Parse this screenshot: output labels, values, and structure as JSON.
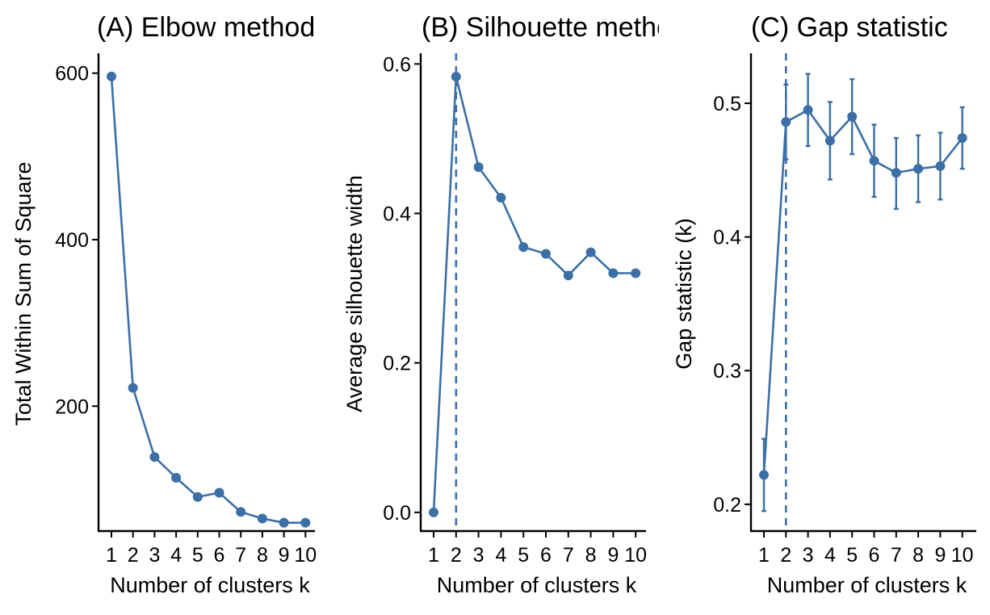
{
  "colors": {
    "series": "#3b6fa6",
    "axis": "#000000",
    "background": "#ffffff"
  },
  "chart_data": [
    {
      "type": "line",
      "title": "(A) Elbow method",
      "xlabel": "Number of clusters k",
      "ylabel": "Total Within Sum of Square",
      "x": [
        1,
        2,
        3,
        4,
        5,
        6,
        7,
        8,
        9,
        10
      ],
      "x_ticks": [
        "1",
        "2",
        "3",
        "4",
        "5",
        "6",
        "7",
        "8",
        "9",
        "10"
      ],
      "values": [
        596,
        222,
        139,
        114,
        91,
        96,
        73,
        65,
        60,
        60
      ],
      "y_ticks": [
        200,
        400,
        600
      ],
      "y_tick_labels": [
        "200",
        "400",
        "600"
      ],
      "ylim": [
        50,
        620
      ],
      "grid": false
    },
    {
      "type": "line",
      "title": "(B) Silhouette method",
      "xlabel": "Number of clusters k",
      "ylabel": "Average silhouette width",
      "x": [
        1,
        2,
        3,
        4,
        5,
        6,
        7,
        8,
        9,
        10
      ],
      "x_ticks": [
        "1",
        "2",
        "3",
        "4",
        "5",
        "6",
        "7",
        "8",
        "9",
        "10"
      ],
      "values": [
        0.0,
        0.583,
        0.462,
        0.421,
        0.355,
        0.346,
        0.317,
        0.348,
        0.32,
        0.32
      ],
      "y_ticks": [
        0.0,
        0.2,
        0.4,
        0.6
      ],
      "y_tick_labels": [
        "0.0",
        "0.2",
        "0.4",
        "0.6"
      ],
      "ylim": [
        -0.025,
        0.61
      ],
      "vline_x": 2,
      "grid": false
    },
    {
      "type": "line",
      "title": "(C) Gap statistic",
      "xlabel": "Number of clusters k",
      "ylabel": "Gap statistic (k)",
      "x": [
        1,
        2,
        3,
        4,
        5,
        6,
        7,
        8,
        9,
        10
      ],
      "x_ticks": [
        "1",
        "2",
        "3",
        "4",
        "5",
        "6",
        "7",
        "8",
        "9",
        "10"
      ],
      "values": [
        0.222,
        0.486,
        0.495,
        0.472,
        0.49,
        0.457,
        0.448,
        0.451,
        0.453,
        0.474
      ],
      "error_low": [
        0.195,
        0.458,
        0.468,
        0.443,
        0.462,
        0.43,
        0.421,
        0.426,
        0.428,
        0.451
      ],
      "error_high": [
        0.249,
        0.514,
        0.522,
        0.501,
        0.518,
        0.484,
        0.474,
        0.476,
        0.478,
        0.497
      ],
      "y_ticks": [
        0.2,
        0.3,
        0.4,
        0.5
      ],
      "y_tick_labels": [
        "0.2",
        "0.3",
        "0.4",
        "0.5"
      ],
      "ylim": [
        0.18,
        0.535
      ],
      "vline_x": 2,
      "grid": false
    }
  ]
}
